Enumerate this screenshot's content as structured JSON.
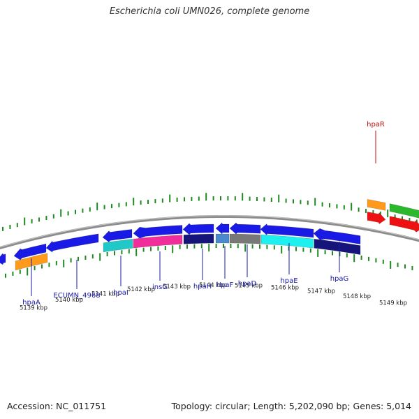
{
  "title": "Escherichia coli UMN026, complete genome",
  "footer": {
    "accession": "Accession: NC_011751",
    "summary": "Topology: circular; Length: 5,202,090 bp; Genes: 5,014"
  },
  "colors": {
    "background": "#ffffff",
    "backbone": "#8c8c8c",
    "tick": "#1f8a1f",
    "label_blue": "#1a1aa8",
    "label_red": "#c01010",
    "axis_text": "#222222"
  },
  "kbp_labels": [
    "5139 kbp",
    "5140 kbp",
    "5141 kbp",
    "5142 kbp",
    "5143 kbp",
    "5144 kbp",
    "5145 kbp",
    "5146 kbp",
    "5147 kbp",
    "5148 kbp",
    "5149 kbp"
  ],
  "gene_labels": [
    {
      "name": "hpaA",
      "color": "#1a1aa8"
    },
    {
      "name": "ECUMN_4968",
      "color": "#1a1aa8"
    },
    {
      "name": "hpaI",
      "color": "#1a1aa8"
    },
    {
      "name": "insG",
      "color": "#1a1aa8"
    },
    {
      "name": "hpaH",
      "color": "#1a1aa8"
    },
    {
      "name": "hpaF",
      "color": "#1a1aa8"
    },
    {
      "name": "hpaD",
      "color": "#1a1aa8"
    },
    {
      "name": "hpaE",
      "color": "#1a1aa8"
    },
    {
      "name": "hpaG",
      "color": "#1a1aa8"
    },
    {
      "name": "hpaR",
      "color": "#c01010"
    }
  ],
  "features": [
    {
      "color": "#1a1ae6",
      "strand": "reverse"
    },
    {
      "color": "#ff9a1a",
      "strand": "forward"
    },
    {
      "color": "#1a1ae6",
      "strand": "reverse"
    },
    {
      "color": "#1a1ae6",
      "strand": "reverse"
    },
    {
      "color": "#1a1ae6",
      "strand": "reverse"
    },
    {
      "color": "#20c8c8",
      "strand": "forward"
    },
    {
      "color": "#1a1ae6",
      "strand": "reverse"
    },
    {
      "color": "#f02d9a",
      "strand": "forward"
    },
    {
      "color": "#1a1ae6",
      "strand": "reverse"
    },
    {
      "color": "#14147a",
      "strand": "forward"
    },
    {
      "color": "#1a1ae6",
      "strand": "reverse"
    },
    {
      "color": "#4a8acc",
      "strand": "forward"
    },
    {
      "color": "#1a1ae6",
      "strand": "reverse"
    },
    {
      "color": "#787878",
      "strand": "forward"
    },
    {
      "color": "#1a1ae6",
      "strand": "reverse"
    },
    {
      "color": "#1ef0f0",
      "strand": "forward"
    },
    {
      "color": "#1a1ae6",
      "strand": "reverse"
    },
    {
      "color": "#14147a",
      "strand": "forward"
    },
    {
      "color": "#ff9a1a",
      "strand": "forward"
    },
    {
      "color": "#ee1111",
      "strand": "forward"
    },
    {
      "color": "#2cb82c",
      "strand": "forward"
    },
    {
      "color": "#ee1111",
      "strand": "forward"
    }
  ]
}
